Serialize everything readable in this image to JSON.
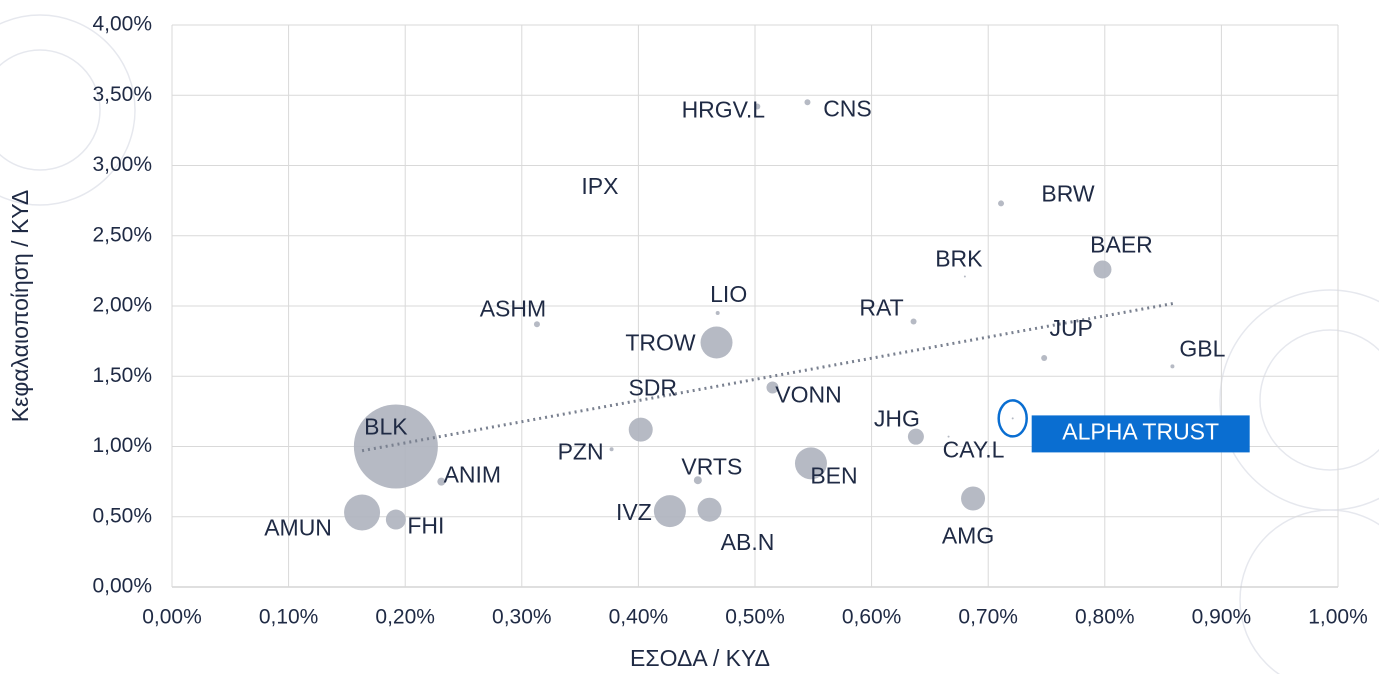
{
  "chart_data": {
    "type": "bubble",
    "x_label": "ΕΣΟΔΑ / ΚΥΔ",
    "y_label": "Κεφαλαιοποίηση / ΚΥΔ",
    "xlim": [
      0,
      1.0
    ],
    "ylim": [
      0,
      4.0
    ],
    "xticks": [
      {
        "value": 0,
        "label": "0,00%"
      },
      {
        "value": 0.1,
        "label": "0,10%"
      },
      {
        "value": 0.2,
        "label": "0,20%"
      },
      {
        "value": 0.3,
        "label": "0,30%"
      },
      {
        "value": 0.4,
        "label": "0,40%"
      },
      {
        "value": 0.5,
        "label": "0,50%"
      },
      {
        "value": 0.6,
        "label": "0,60%"
      },
      {
        "value": 0.7,
        "label": "0,70%"
      },
      {
        "value": 0.8,
        "label": "0,80%"
      },
      {
        "value": 0.9,
        "label": "0,90%"
      },
      {
        "value": 1.0,
        "label": "1,00%"
      }
    ],
    "yticks": [
      {
        "value": 0,
        "label": "0,00%"
      },
      {
        "value": 0.5,
        "label": "0,50%"
      },
      {
        "value": 1.0,
        "label": "1,00%"
      },
      {
        "value": 1.5,
        "label": "1,50%"
      },
      {
        "value": 2.0,
        "label": "2,00%"
      },
      {
        "value": 2.5,
        "label": "2,50%"
      },
      {
        "value": 3.0,
        "label": "3,00%"
      },
      {
        "value": 3.5,
        "label": "3,50%"
      },
      {
        "value": 4.0,
        "label": "4,00%"
      }
    ],
    "grid": true,
    "color": "#aeb3be",
    "highlight_color": "#0a6ed1",
    "points": [
      {
        "label": "BLK",
        "x": 0.192,
        "y": 1.0,
        "size": 42
      },
      {
        "label": "AMUN",
        "x": 0.163,
        "y": 0.53,
        "size": 18
      },
      {
        "label": "FHI",
        "x": 0.192,
        "y": 0.48,
        "size": 10
      },
      {
        "label": "ANIM",
        "x": 0.231,
        "y": 0.75,
        "size": 4
      },
      {
        "label": "ASHM",
        "x": 0.313,
        "y": 1.87,
        "size": 3
      },
      {
        "label": "PZN",
        "x": 0.377,
        "y": 0.98,
        "size": 2
      },
      {
        "label": "SDR",
        "x": 0.402,
        "y": 1.12,
        "size": 12
      },
      {
        "label": "TROW",
        "x": 0.467,
        "y": 1.74,
        "size": 16
      },
      {
        "label": "LIO",
        "x": 0.468,
        "y": 1.95,
        "size": 2
      },
      {
        "label": "IPX",
        "x": 0.367,
        "y": 2.84,
        "size": 1
      },
      {
        "label": "HRGV.L",
        "x": 0.502,
        "y": 3.42,
        "size": 3
      },
      {
        "label": "CNS",
        "x": 0.545,
        "y": 3.45,
        "size": 3
      },
      {
        "label": "IVZ",
        "x": 0.427,
        "y": 0.54,
        "size": 16
      },
      {
        "label": "AB.N",
        "x": 0.461,
        "y": 0.55,
        "size": 12
      },
      {
        "label": "VRTS",
        "x": 0.451,
        "y": 0.76,
        "size": 4
      },
      {
        "label": "VONN",
        "x": 0.515,
        "y": 1.42,
        "size": 6
      },
      {
        "label": "BEN",
        "x": 0.548,
        "y": 0.88,
        "size": 16
      },
      {
        "label": "RAT",
        "x": 0.636,
        "y": 1.89,
        "size": 3
      },
      {
        "label": "JHG",
        "x": 0.638,
        "y": 1.07,
        "size": 8
      },
      {
        "label": "BRK",
        "x": 0.68,
        "y": 2.21,
        "size": 1
      },
      {
        "label": "CAY.L",
        "x": 0.666,
        "y": 1.07,
        "size": 1
      },
      {
        "label": "AMG",
        "x": 0.687,
        "y": 0.63,
        "size": 12
      },
      {
        "label": "BRW",
        "x": 0.711,
        "y": 2.73,
        "size": 3
      },
      {
        "label": "BAER",
        "x": 0.798,
        "y": 2.26,
        "size": 9
      },
      {
        "label": "JUP",
        "x": 0.748,
        "y": 1.63,
        "size": 3
      },
      {
        "label": "GBL",
        "x": 0.858,
        "y": 1.57,
        "size": 2
      },
      {
        "label": "ALPHA TRUST",
        "x": 0.721,
        "y": 1.2,
        "size": 1,
        "highlighted": true
      }
    ],
    "trendline": {
      "x": [
        0.163,
        0.86
      ],
      "y": [
        0.97,
        2.02
      ]
    }
  }
}
